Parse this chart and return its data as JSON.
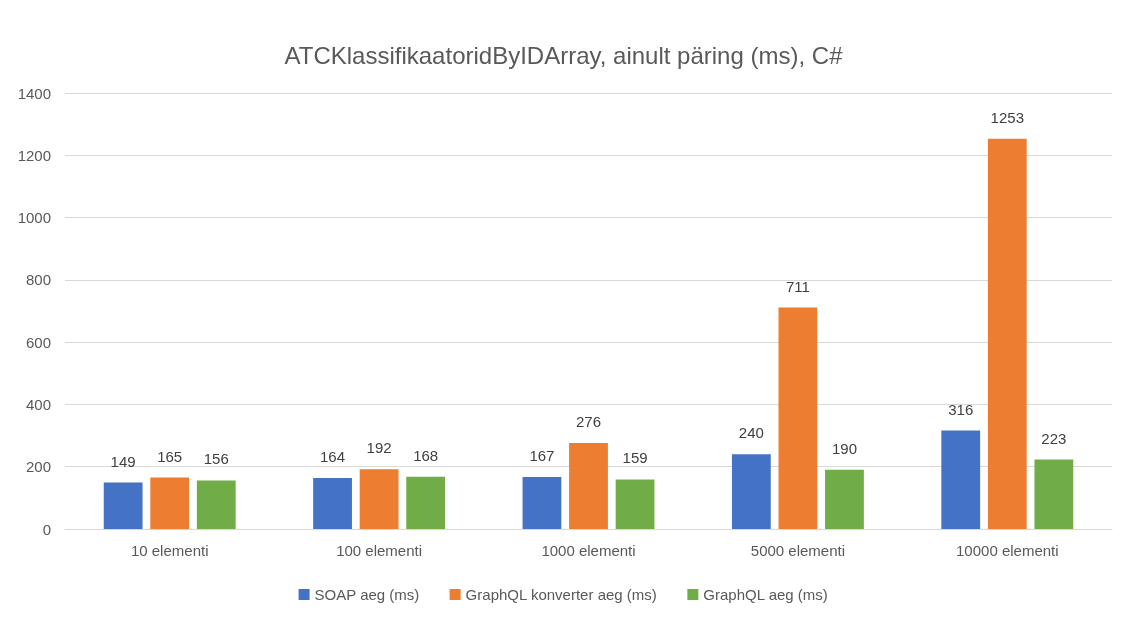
{
  "chart_data": {
    "type": "bar",
    "title": "ATCKlassifikaatoridByIDArray, ainult päring (ms), C#",
    "categories": [
      "10 elementi",
      "100 elementi",
      "1000 elementi",
      "5000 elementi",
      "10000 elementi"
    ],
    "series": [
      {
        "name": "SOAP aeg (ms)",
        "color": "#4472c4",
        "values": [
          149,
          164,
          167,
          240,
          316
        ]
      },
      {
        "name": "GraphQL konverter aeg (ms)",
        "color": "#ed7d31",
        "values": [
          165,
          192,
          276,
          711,
          1253
        ]
      },
      {
        "name": "GraphQL aeg (ms)",
        "color": "#70ad47",
        "values": [
          156,
          168,
          159,
          190,
          223
        ]
      }
    ],
    "ylim": [
      0,
      1400
    ],
    "yticks": [
      0,
      200,
      400,
      600,
      800,
      1000,
      1200,
      1400
    ],
    "grid": "y",
    "legend": "bottom",
    "data_labels": true
  }
}
